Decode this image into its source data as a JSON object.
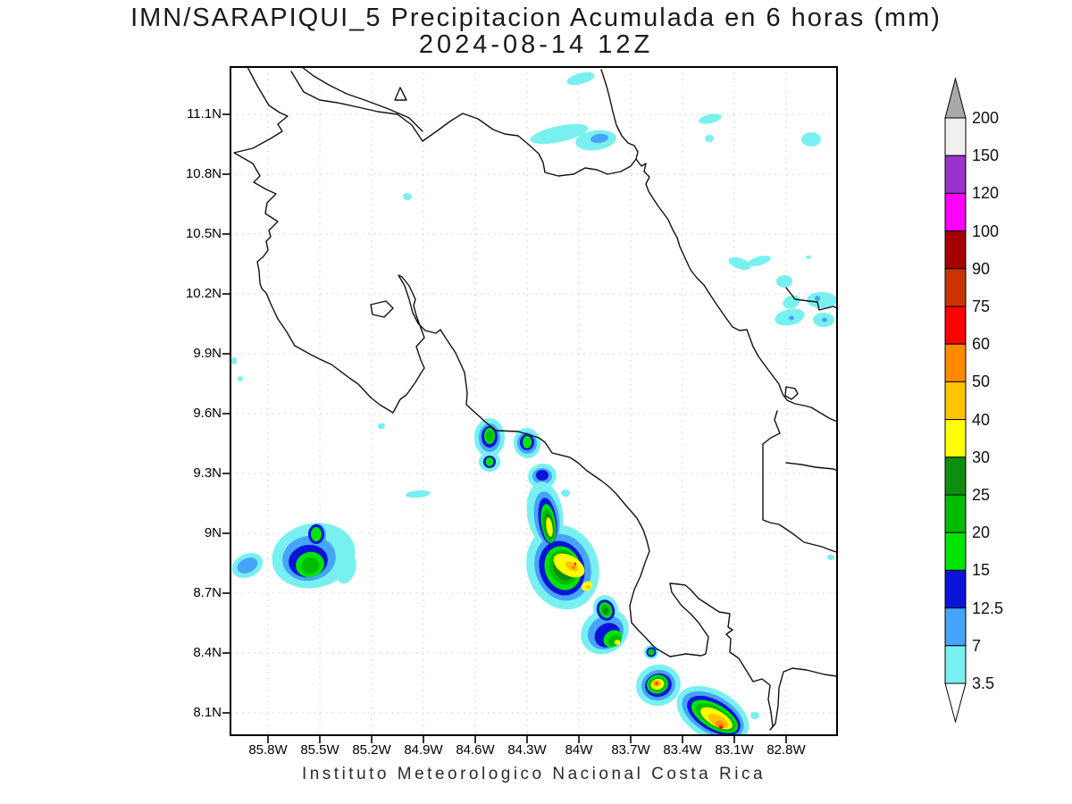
{
  "header": {
    "title_line1": "IMN/SARAPIQUI_5 Precipitacion Acumulada en 6 horas (mm)",
    "title_line2": "2024-08-14 12Z"
  },
  "footer": {
    "credit": "Instituto Meteorologico Nacional Costa Rica"
  },
  "axes": {
    "lat_ticks": [
      "11.1N",
      "10.8N",
      "10.5N",
      "10.2N",
      "9.9N",
      "9.6N",
      "9.3N",
      "9N",
      "8.7N",
      "8.4N",
      "8.1N"
    ],
    "lon_ticks": [
      "85.8W",
      "85.5W",
      "85.2W",
      "84.9W",
      "84.6W",
      "84.3W",
      "84W",
      "83.7W",
      "83.4W",
      "83.1W",
      "82.8W"
    ]
  },
  "colorbar": {
    "boundary_labels_top_to_bottom": [
      "200",
      "150",
      "120",
      "100",
      "90",
      "75",
      "60",
      "50",
      "40",
      "30",
      "25",
      "20",
      "15",
      "12.5",
      "7",
      "3.5"
    ],
    "segment_colors_top_to_bottom": [
      "#F0F0F0",
      "#9933CC",
      "#FF00FF",
      "#A40000",
      "#CC3300",
      "#FF0000",
      "#FF8A00",
      "#FFC400",
      "#FFFF00",
      "#0E8E0E",
      "#00BC00",
      "#00E400",
      "#0A14D8",
      "#46A4FA",
      "#78F0F0"
    ],
    "above_max_color": "#A9A9A9",
    "below_min_color": "#FFFFFF"
  },
  "palette": {
    "3.5": "#78F0F0",
    "7": "#46A4FA",
    "12.5": "#0A14D8",
    "15": "#00E400",
    "20": "#00BC00",
    "25": "#0E8E0E",
    "30": "#FFFF00",
    "40": "#FFC400",
    "50": "#FF8A00",
    "60": "#FF0000"
  },
  "chart_data": {
    "type": "heatmap",
    "title": "IMN/SARAPIQUI_5 Precipitacion Acumulada en 6 horas (mm)",
    "subtitle": "2024-08-14 12Z",
    "units": "mm",
    "legend_levels_mm": [
      3.5,
      7,
      12.5,
      15,
      20,
      25,
      30,
      40,
      50,
      60,
      75,
      90,
      100,
      120,
      150,
      200
    ],
    "lon_axis_ticks_w": [
      85.8,
      85.5,
      85.2,
      84.9,
      84.6,
      84.3,
      84.0,
      83.7,
      83.4,
      83.1,
      82.8
    ],
    "lat_axis_ticks_n": [
      11.1,
      10.8,
      10.5,
      10.2,
      9.9,
      9.6,
      9.3,
      9.0,
      8.7,
      8.4,
      8.1
    ],
    "lon_range_w": [
      86.02,
      82.51
    ],
    "lat_range_n": [
      7.99,
      11.34
    ],
    "grid": "dotted",
    "legend_position": "right",
    "region": "Costa Rica",
    "cells": [
      {
        "lon_w": 84.0,
        "lat_n": 11.28,
        "max_mm": 5
      },
      {
        "lon_w": 84.11,
        "lat_n": 11.01,
        "max_mm": 5
      },
      {
        "lon_w": 83.9,
        "lat_n": 10.97,
        "max_mm": 10
      },
      {
        "lon_w": 83.25,
        "lat_n": 11.08,
        "max_mm": 5
      },
      {
        "lon_w": 83.27,
        "lat_n": 10.98,
        "max_mm": 5
      },
      {
        "lon_w": 82.66,
        "lat_n": 10.97,
        "max_mm": 5
      },
      {
        "lon_w": 84.99,
        "lat_n": 10.69,
        "max_mm": 5
      },
      {
        "lon_w": 83.01,
        "lat_n": 10.35,
        "max_mm": 5
      },
      {
        "lon_w": 82.81,
        "lat_n": 10.26,
        "max_mm": 5
      },
      {
        "lon_w": 82.77,
        "lat_n": 10.16,
        "max_mm": 5
      },
      {
        "lon_w": 82.59,
        "lat_n": 10.17,
        "max_mm": 13
      },
      {
        "lon_w": 82.78,
        "lat_n": 10.08,
        "max_mm": 13
      },
      {
        "lon_w": 82.58,
        "lat_n": 10.07,
        "max_mm": 13
      },
      {
        "lon_w": 85.92,
        "lat_n": 8.84,
        "max_mm": 10
      },
      {
        "lon_w": 85.55,
        "lat_n": 8.85,
        "max_mm": 25
      },
      {
        "lon_w": 85.53,
        "lat_n": 9.0,
        "max_mm": 20
      },
      {
        "lon_w": 85.14,
        "lat_n": 9.54,
        "max_mm": 5
      },
      {
        "lon_w": 84.93,
        "lat_n": 9.2,
        "max_mm": 5
      },
      {
        "lon_w": 84.52,
        "lat_n": 9.48,
        "max_mm": 25
      },
      {
        "lon_w": 84.3,
        "lat_n": 9.45,
        "max_mm": 20
      },
      {
        "lon_w": 84.52,
        "lat_n": 9.36,
        "max_mm": 20
      },
      {
        "lon_w": 84.21,
        "lat_n": 9.29,
        "max_mm": 15
      },
      {
        "lon_w": 84.18,
        "lat_n": 9.03,
        "max_mm": 35
      },
      {
        "lon_w": 84.03,
        "lat_n": 8.84,
        "max_mm": 50
      },
      {
        "lon_w": 83.9,
        "lat_n": 8.74,
        "max_mm": 45
      },
      {
        "lon_w": 83.85,
        "lat_n": 8.62,
        "max_mm": 28
      },
      {
        "lon_w": 83.75,
        "lat_n": 8.45,
        "max_mm": 35
      },
      {
        "lon_w": 83.58,
        "lat_n": 8.4,
        "max_mm": 18
      },
      {
        "lon_w": 83.54,
        "lat_n": 8.24,
        "max_mm": 55
      },
      {
        "lon_w": 83.22,
        "lat_n": 8.06,
        "max_mm": 60
      },
      {
        "lon_w": 82.97,
        "lat_n": 8.09,
        "max_mm": 5
      }
    ]
  }
}
